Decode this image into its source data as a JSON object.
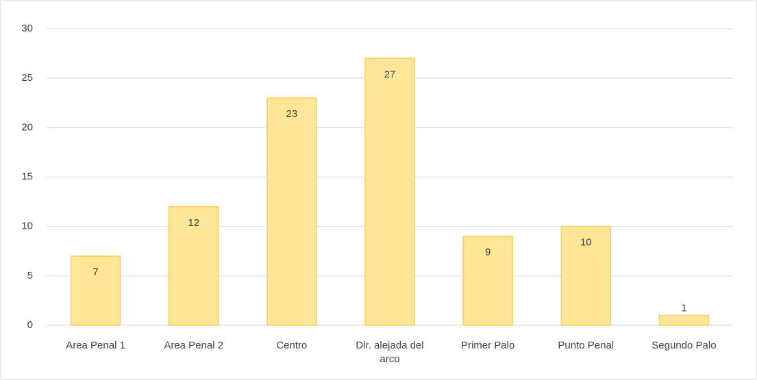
{
  "chart_data": {
    "type": "bar",
    "categories": [
      "Area Penal 1",
      "Area Penal 2",
      "Centro",
      "Dir. alejada del arco",
      "Primer Palo",
      "Punto Penal",
      "Segundo Palo"
    ],
    "values": [
      7,
      12,
      23,
      27,
      9,
      10,
      1
    ],
    "color": "#ffe699",
    "edge_color": "#f7cf5a",
    "ylim": [
      0,
      30
    ],
    "yticks": [
      0,
      5,
      10,
      15,
      20,
      25,
      30
    ],
    "grid": true
  }
}
